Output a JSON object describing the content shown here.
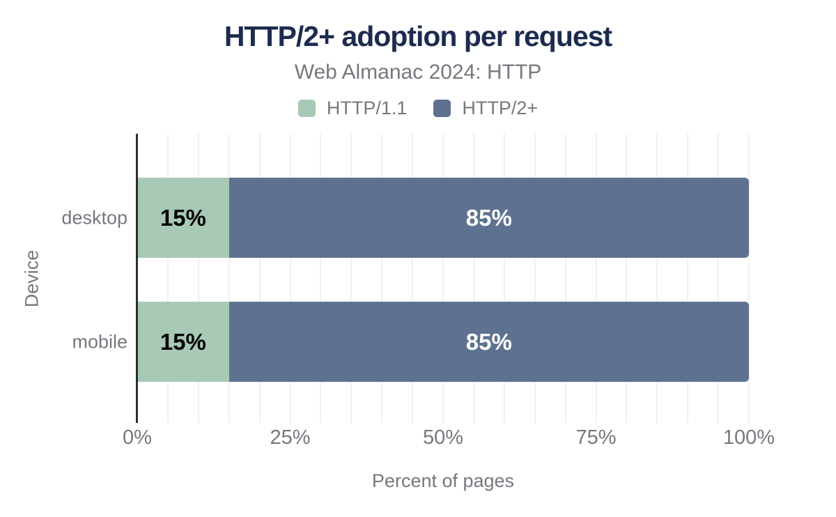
{
  "chart_data": {
    "type": "bar",
    "orientation": "horizontal",
    "stacked": true,
    "title": "HTTP/2+ adoption per request",
    "subtitle": "Web Almanac 2024: HTTP",
    "xlabel": "Percent of pages",
    "ylabel": "Device",
    "categories": [
      "desktop",
      "mobile"
    ],
    "series": [
      {
        "name": "HTTP/1.1",
        "color": "#a7c9b5",
        "label_color": "#000000",
        "values": [
          15,
          15
        ]
      },
      {
        "name": "HTTP/2+",
        "color": "#5e7290",
        "label_color": "#ffffff",
        "values": [
          85,
          85
        ]
      }
    ],
    "value_suffix": "%",
    "xlim": [
      0,
      100
    ],
    "x_ticks": [
      {
        "value": 0,
        "label": "0%"
      },
      {
        "value": 25,
        "label": "25%"
      },
      {
        "value": 50,
        "label": "50%"
      },
      {
        "value": 75,
        "label": "75%"
      },
      {
        "value": 100,
        "label": "100%"
      }
    ],
    "minor_grid_step": 5,
    "grid": true,
    "legend_position": "top"
  },
  "colors": {
    "title": "#1c2b4e",
    "muted_text": "#75787e",
    "grid_line": "#f0f0f1",
    "axis_line": "#2b2d2e"
  }
}
